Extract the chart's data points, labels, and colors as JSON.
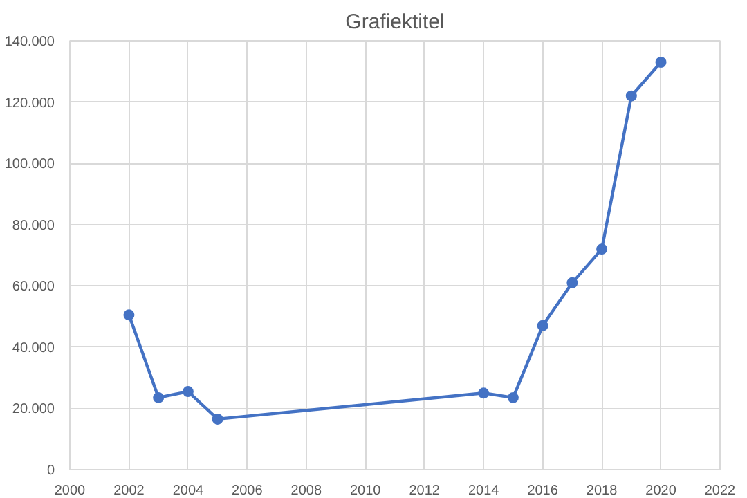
{
  "chart_data": {
    "type": "line",
    "title": "Grafiektitel",
    "x": [
      2002,
      2003,
      2004,
      2005,
      2014,
      2015,
      2016,
      2017,
      2018,
      2019,
      2020
    ],
    "series": [
      {
        "color": "#4472c4",
        "values": [
          50500,
          23500,
          25500,
          16500,
          25000,
          23500,
          47000,
          61000,
          72000,
          122000,
          133000
        ]
      }
    ],
    "xlim": [
      2000,
      2022
    ],
    "xticks": [
      2000,
      2002,
      2004,
      2006,
      2008,
      2010,
      2012,
      2014,
      2016,
      2018,
      2020,
      2022
    ],
    "ylim": [
      0,
      140000
    ],
    "yticks": [
      0,
      {
        "value": 20000,
        "label": "20.000"
      },
      {
        "value": 40000,
        "label": "40.000"
      },
      {
        "value": 60000,
        "label": "60.000"
      },
      {
        "value": 80000,
        "label": "80.000"
      },
      {
        "value": 100000,
        "label": "100.000"
      },
      {
        "value": 120000,
        "label": "120.000"
      },
      {
        "value": 140000,
        "label": "140.000"
      }
    ],
    "grid": true,
    "marker": "circle",
    "line_style": "solid"
  }
}
